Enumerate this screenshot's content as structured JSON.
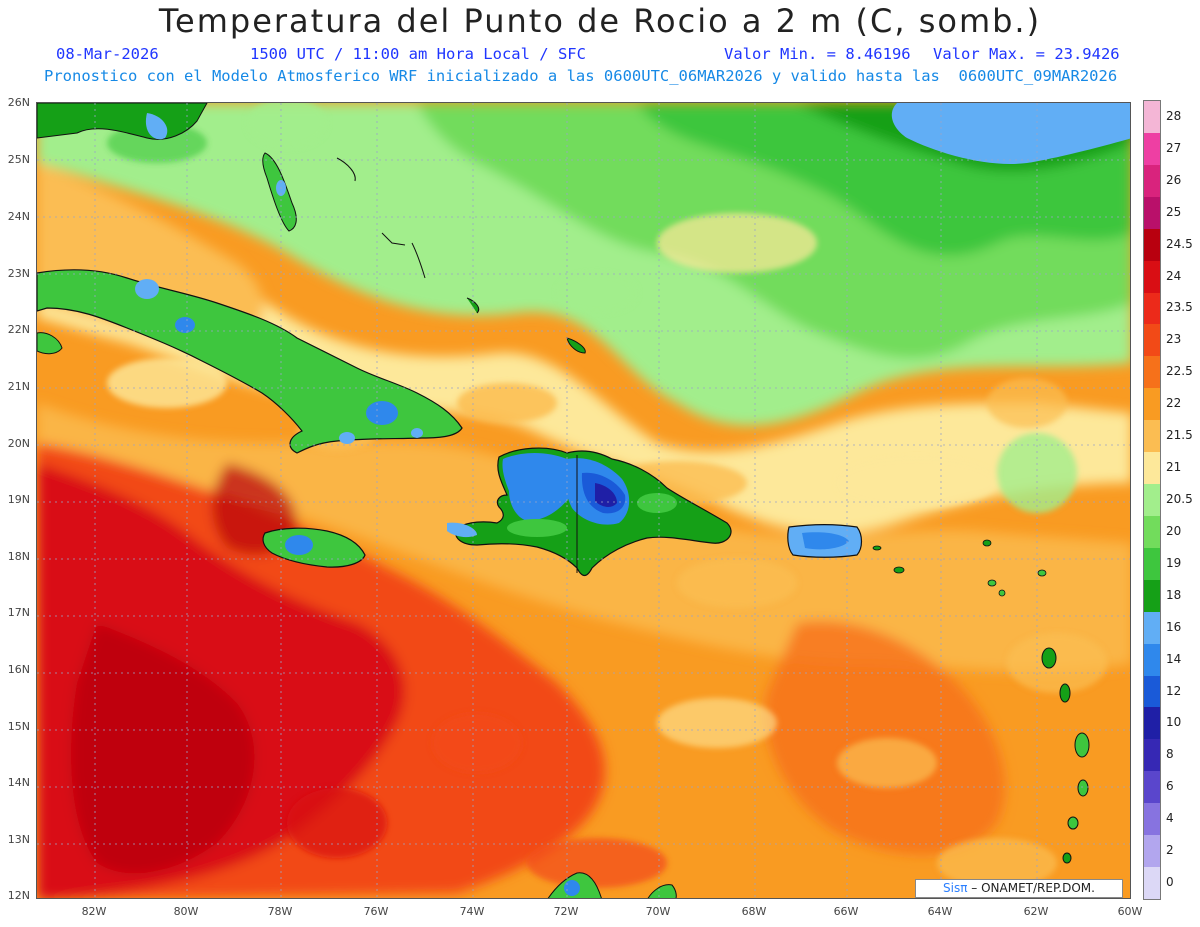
{
  "header": {
    "title": "Temperatura del Punto de Rocio a 2 m (C, somb.)",
    "date": "08-Mar-2026",
    "time": "1500 UTC / 11:00 am Hora Local / SFC",
    "min_value": "Valor Min. = 8.46196",
    "max_value": "Valor Max. = 23.9426",
    "model_info": "Pronostico con el Modelo Atmosferico WRF inicializado a las 0600UTC_06MAR2026 y valido hasta las  0600UTC_09MAR2026"
  },
  "map": {
    "lat_labels": [
      "26N",
      "25N",
      "24N",
      "23N",
      "22N",
      "21N",
      "20N",
      "19N",
      "18N",
      "17N",
      "16N",
      "15N",
      "14N",
      "13N",
      "12N"
    ],
    "lon_labels": [
      "82W",
      "80W",
      "78W",
      "76W",
      "74W",
      "72W",
      "70W",
      "68W",
      "66W",
      "64W",
      "62W",
      "60W"
    ],
    "credit_brand": "Sisπ",
    "credit_text": "– ONAMET/REP.DOM."
  },
  "colorbar": {
    "levels": [
      "28",
      "27",
      "26",
      "25",
      "24.5",
      "24",
      "23.5",
      "23",
      "22.5",
      "22",
      "21.5",
      "21",
      "20.5",
      "20",
      "19",
      "18",
      "16",
      "14",
      "12",
      "10",
      "8",
      "6",
      "4",
      "2",
      "0"
    ],
    "colors": [
      "#f4b6d6",
      "#ee3fa3",
      "#d9237d",
      "#b9106a",
      "#b8000f",
      "#d90e14",
      "#ec2a1a",
      "#f24a17",
      "#f6711a",
      "#f99b22",
      "#fbbd52",
      "#fde89a",
      "#a2ee8c",
      "#72dc5c",
      "#3ec63e",
      "#15a017",
      "#61aef5",
      "#2f88ec",
      "#1a5ad8",
      "#1f1fa6",
      "#3628b4",
      "#5a46cc",
      "#8773e0",
      "#b2a6ee",
      "#dcd8f6"
    ]
  }
}
